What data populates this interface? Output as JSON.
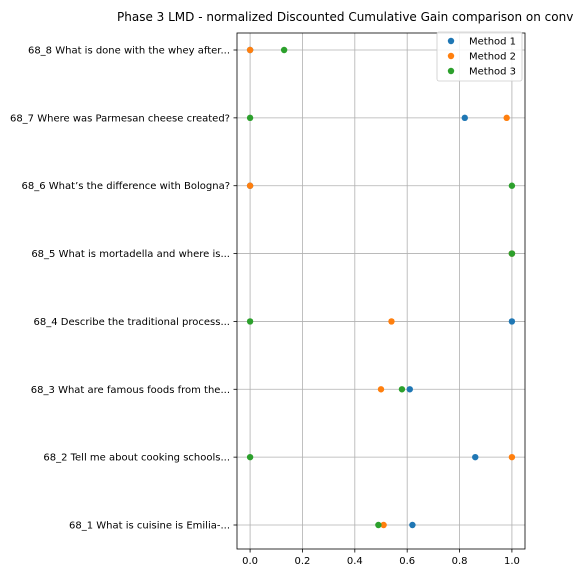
{
  "chart_data": {
    "type": "scatter",
    "title": "Phase 3 LMD - normalized Discounted Cumulative Gain comparison on conv",
    "xlabel": "",
    "ylabel": "",
    "xlim": [
      -0.05,
      1.05
    ],
    "x_ticks": [
      {
        "value": 0.0,
        "label": "0.0"
      },
      {
        "value": 0.2,
        "label": "0.2"
      },
      {
        "value": 0.4,
        "label": "0.4"
      },
      {
        "value": 0.6,
        "label": "0.6"
      },
      {
        "value": 0.8,
        "label": "0.8"
      },
      {
        "value": 1.0,
        "label": "1.0"
      }
    ],
    "categories": [
      "68_1 What is cuisine is Emilia-...",
      "68_2 Tell me about cooking schools...",
      "68_3 What are famous foods from the...",
      "68_4 Describe the traditional process...",
      "68_5 What is mortadella and where is...",
      "68_6 What’s the difference with Bologna?",
      "68_7 Where was Parmesan cheese created?",
      "68_8 What is done with the whey after..."
    ],
    "grid": true,
    "legend_position": "top-right",
    "series": [
      {
        "name": "Method 1",
        "color": "#1f77b4",
        "values": [
          0.62,
          0.86,
          0.61,
          1.0,
          1.0,
          0.0,
          0.82,
          0.0
        ]
      },
      {
        "name": "Method 2",
        "color": "#ff7f0e",
        "values": [
          0.51,
          1.0,
          0.5,
          0.54,
          1.0,
          0.0,
          0.98,
          0.0
        ]
      },
      {
        "name": "Method 3",
        "color": "#2ca02c",
        "values": [
          0.49,
          0.0,
          0.58,
          0.0,
          1.0,
          1.0,
          0.0,
          0.13
        ]
      }
    ]
  }
}
